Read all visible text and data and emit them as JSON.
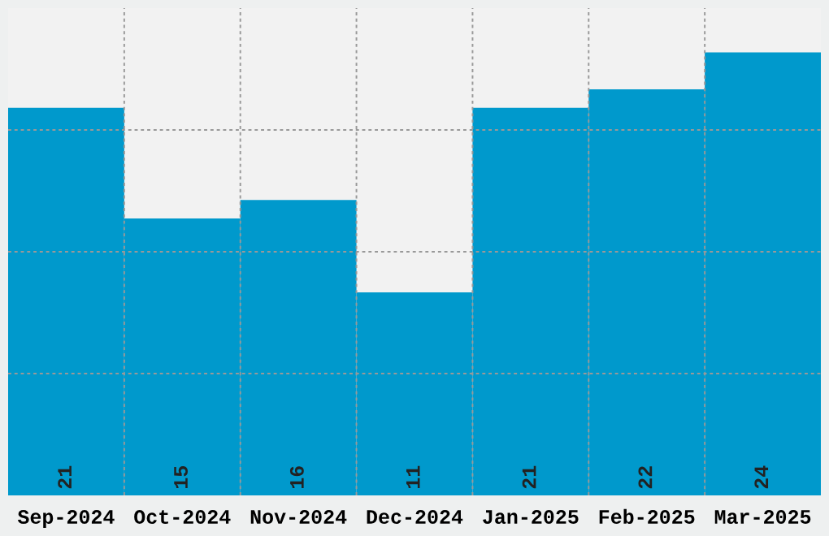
{
  "chart_data": {
    "type": "bar",
    "categories": [
      "Sep-2024",
      "Oct-2024",
      "Nov-2024",
      "Dec-2024",
      "Jan-2025",
      "Feb-2025",
      "Mar-2025"
    ],
    "values": [
      21,
      15,
      16,
      11,
      21,
      22,
      24
    ],
    "color": "#0099cc",
    "ylim": [
      0,
      26.4
    ],
    "yticks": [
      {
        "value": 6.6,
        "label": null
      },
      {
        "value": 13.2,
        "label": null
      },
      {
        "value": 19.8,
        "label": null
      }
    ],
    "tick_labels": "x",
    "data_labels": true,
    "grid": true
  }
}
